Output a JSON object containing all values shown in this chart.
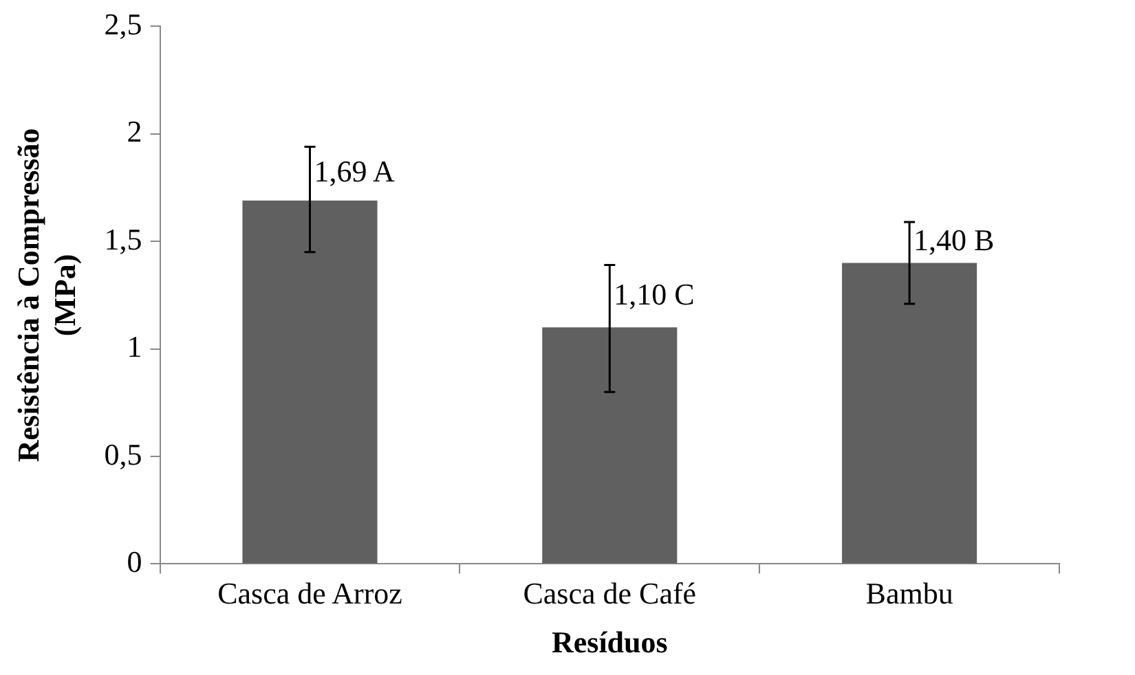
{
  "chart_data": {
    "type": "bar",
    "xlabel": "Resíduos",
    "ylabel": "Resistência à Compressão (MPa)",
    "categories": [
      "Casca de Arroz",
      "Casca de Café",
      "Bambu"
    ],
    "series": [
      {
        "color": "#606060",
        "values": [
          1.69,
          1.1,
          1.4
        ],
        "errors": [
          [
            1.45,
            1.94
          ],
          [
            0.8,
            1.39
          ],
          [
            1.21,
            1.59
          ]
        ],
        "value_labels": [
          "1,69 A",
          "1,10 C",
          "1,40 B"
        ]
      }
    ],
    "ylim": [
      0,
      2.5
    ],
    "yticks": [
      0,
      {
        "value": 0.5,
        "label": "0,5"
      },
      1,
      {
        "value": 1.5,
        "label": "1,5"
      },
      2,
      {
        "value": 2.5,
        "label": "2,5"
      }
    ],
    "grid": false,
    "legend": false
  }
}
